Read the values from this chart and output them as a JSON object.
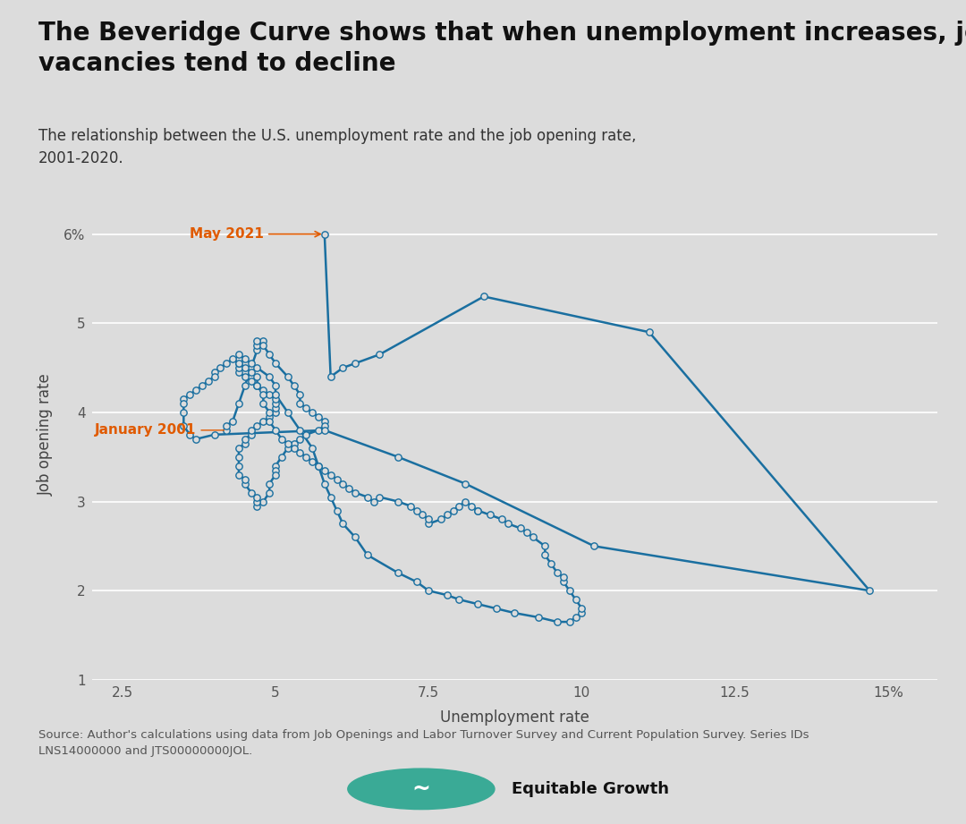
{
  "title": "The Beveridge Curve shows that when unemployment increases, job\nvacancies tend to decline",
  "subtitle": "The relationship between the U.S. unemployment rate and the job opening rate,\n2001-2020.",
  "xlabel": "Unemployment rate",
  "ylabel": "Job opening rate",
  "source": "Source: Author's calculations using data from Job Openings and Labor Turnover Survey and Current Population Survey. Series IDs\nLNS14000000 and JTS00000000JOL.",
  "background_color": "#dcdcdc",
  "line_color": "#1a6fa0",
  "marker_facecolor": "#dcdcdc",
  "marker_edgecolor": "#1a6fa0",
  "annotation_color": "#e05a00",
  "xlim": [
    2.0,
    15.8
  ],
  "ylim": [
    1.0,
    6.5
  ],
  "yticks": [
    1,
    2,
    3,
    4,
    5,
    6
  ],
  "xticks": [
    2.5,
    5.0,
    7.5,
    10.0,
    12.5,
    15.0
  ],
  "xtick_labels": [
    "2.5",
    "5",
    "7.5",
    "10",
    "12.5",
    "15%"
  ],
  "ytick_labels": [
    "1",
    "2",
    "3",
    "4",
    "5",
    "6%"
  ],
  "data_x": [
    4.2,
    4.2,
    4.3,
    4.4,
    4.5,
    4.6,
    4.7,
    4.8,
    4.7,
    4.7,
    4.8,
    4.9,
    5.0,
    5.2,
    5.3,
    5.4,
    5.4,
    5.5,
    5.6,
    5.7,
    5.8,
    5.8,
    5.7,
    5.5,
    5.4,
    5.3,
    5.2,
    5.1,
    5.0,
    5.0,
    5.0,
    4.9,
    4.9,
    4.8,
    4.7,
    4.7,
    4.7,
    4.6,
    4.5,
    4.5,
    4.4,
    4.4,
    4.4,
    4.4,
    4.5,
    4.5,
    4.6,
    4.6,
    4.7,
    4.8,
    4.9,
    5.0,
    5.0,
    5.0,
    5.0,
    4.9,
    4.8,
    4.7,
    4.6,
    4.5,
    4.4,
    4.4,
    4.4,
    4.4,
    4.4,
    4.5,
    4.6,
    4.7,
    4.9,
    5.0,
    5.0,
    5.2,
    5.4,
    5.6,
    5.7,
    5.8,
    5.9,
    6.0,
    6.1,
    6.3,
    6.5,
    7.0,
    7.3,
    7.5,
    7.8,
    8.0,
    8.3,
    8.6,
    8.9,
    9.3,
    9.6,
    9.8,
    9.9,
    10.0,
    10.0,
    9.9,
    9.8,
    9.7,
    9.7,
    9.6,
    9.5,
    9.4,
    9.4,
    9.2,
    9.1,
    9.0,
    8.8,
    8.7,
    8.5,
    8.3,
    8.3,
    8.2,
    8.1,
    8.0,
    7.9,
    7.8,
    7.7,
    7.5,
    7.5,
    7.4,
    7.3,
    7.2,
    7.0,
    6.7,
    6.6,
    6.5,
    6.3,
    6.2,
    6.1,
    6.0,
    5.9,
    5.8,
    5.7,
    5.6,
    5.5,
    5.4,
    5.3,
    5.2,
    5.1,
    5.0,
    4.9,
    4.9,
    4.8,
    4.8,
    4.7,
    4.7,
    4.6,
    4.5,
    4.4,
    4.3,
    4.2,
    4.1,
    4.0,
    4.0,
    3.9,
    3.8,
    3.7,
    3.6,
    3.5,
    3.5,
    3.5,
    3.5,
    3.6,
    3.7,
    4.0,
    5.8,
    7.0,
    8.1,
    10.2,
    14.7,
    11.1,
    8.4,
    6.7,
    6.3,
    6.1,
    5.9,
    5.8
  ],
  "data_y": [
    3.8,
    3.85,
    3.9,
    4.1,
    4.3,
    4.5,
    4.7,
    4.8,
    4.75,
    4.8,
    4.75,
    4.65,
    4.55,
    4.4,
    4.3,
    4.2,
    4.1,
    4.05,
    4.0,
    3.95,
    3.9,
    3.85,
    3.8,
    3.75,
    3.7,
    3.65,
    3.6,
    3.5,
    3.4,
    3.35,
    3.3,
    3.2,
    3.1,
    3.0,
    2.95,
    3.0,
    3.05,
    3.1,
    3.2,
    3.25,
    3.3,
    3.4,
    3.5,
    3.6,
    3.65,
    3.7,
    3.75,
    3.8,
    3.85,
    3.9,
    3.95,
    4.0,
    4.05,
    4.1,
    4.15,
    4.2,
    4.25,
    4.3,
    4.35,
    4.4,
    4.45,
    4.5,
    4.55,
    4.6,
    4.65,
    4.6,
    4.55,
    4.5,
    4.4,
    4.3,
    4.2,
    4.0,
    3.8,
    3.6,
    3.4,
    3.2,
    3.05,
    2.9,
    2.75,
    2.6,
    2.4,
    2.2,
    2.1,
    2.0,
    1.95,
    1.9,
    1.85,
    1.8,
    1.75,
    1.7,
    1.65,
    1.65,
    1.7,
    1.75,
    1.8,
    1.9,
    2.0,
    2.1,
    2.15,
    2.2,
    2.3,
    2.4,
    2.5,
    2.6,
    2.65,
    2.7,
    2.75,
    2.8,
    2.85,
    2.9,
    2.9,
    2.95,
    3.0,
    2.95,
    2.9,
    2.85,
    2.8,
    2.75,
    2.8,
    2.85,
    2.9,
    2.95,
    3.0,
    3.05,
    3.0,
    3.05,
    3.1,
    3.15,
    3.2,
    3.25,
    3.3,
    3.35,
    3.4,
    3.45,
    3.5,
    3.55,
    3.6,
    3.65,
    3.7,
    3.8,
    3.9,
    4.0,
    4.1,
    4.2,
    4.3,
    4.4,
    4.45,
    4.5,
    4.55,
    4.6,
    4.55,
    4.5,
    4.45,
    4.4,
    4.35,
    4.3,
    4.25,
    4.2,
    4.15,
    4.1,
    4.0,
    3.85,
    3.75,
    3.7,
    3.75,
    3.8,
    3.5,
    3.2,
    2.5,
    2.0,
    4.9,
    5.3,
    4.65,
    4.55,
    4.5,
    4.4,
    6.0
  ],
  "jan2001_x": 4.2,
  "jan2001_y": 3.8,
  "may2021_x": 5.8,
  "may2021_y": 6.0,
  "title_fontsize": 20,
  "subtitle_fontsize": 12,
  "axis_label_fontsize": 12,
  "tick_fontsize": 11,
  "annotation_fontsize": 11,
  "source_fontsize": 9.5
}
